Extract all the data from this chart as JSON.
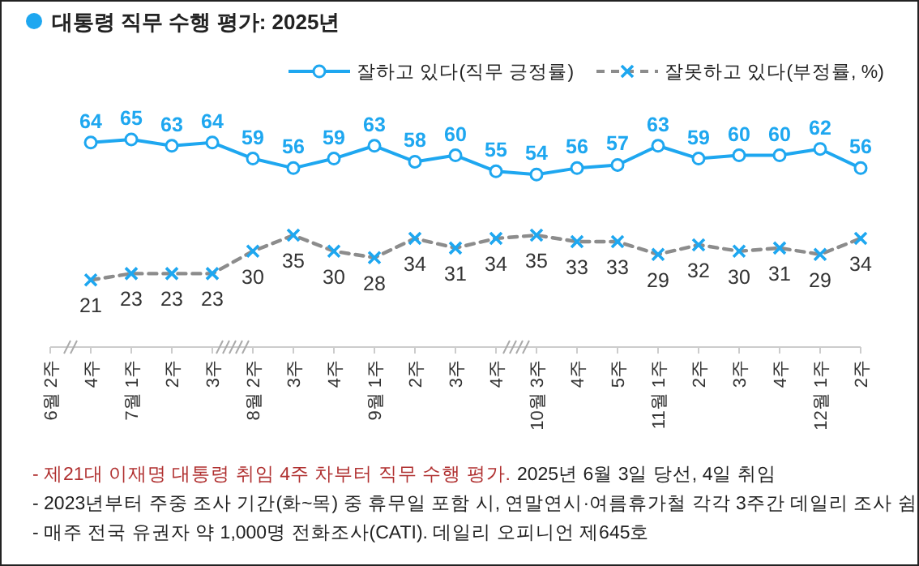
{
  "chart_data": {
    "type": "line",
    "title": "대통령 직무 수행 평가: 2025년",
    "categories": [
      "6월 2주",
      "4주",
      "7월 1주",
      "2주",
      "3주",
      "8월 2주",
      "3주",
      "4주",
      "9월 1주",
      "2주",
      "3주",
      "4주",
      "10월 3주",
      "4주",
      "5주",
      "11월 1주",
      "2주",
      "3주",
      "4주",
      "12월 1주",
      "2주"
    ],
    "series": [
      {
        "name": "잘하고 있다(직무 긍정률)",
        "color": "#1ea7f0",
        "marker": "circle",
        "line_style": "solid",
        "values": [
          null,
          64,
          65,
          63,
          64,
          59,
          56,
          59,
          63,
          58,
          60,
          55,
          54,
          56,
          57,
          63,
          59,
          60,
          60,
          62,
          56
        ]
      },
      {
        "name": "잘못하고 있다(부정률, %)",
        "color": "#8c8c8c",
        "marker": "cross",
        "line_style": "dashed",
        "values": [
          null,
          21,
          23,
          23,
          23,
          30,
          35,
          30,
          28,
          34,
          31,
          34,
          35,
          33,
          33,
          29,
          32,
          30,
          31,
          29,
          34
        ]
      }
    ],
    "tick_labels": "x",
    "data_labels": true,
    "legend": "top right",
    "annotations": [
      "- 제21대 이재명 대통령 취임 4주 차부터 직무 수행 평가.",
      "2025년 6월 3일 당선, 4일 취임",
      "- 2023년부터 주중 조사 기간(화~목) 중 휴무일 포함 시, 연말연시·여름휴가철 각각 3주간 데일리 조사 쉼",
      "- 매주 전국 유권자 약 1,000명 전화조사(CATI). 데일리 오피니언 제645호"
    ]
  }
}
